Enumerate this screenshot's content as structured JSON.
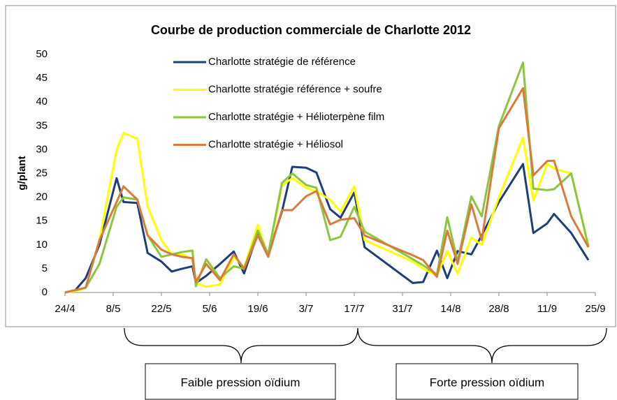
{
  "chart_data": {
    "type": "line",
    "title": "Courbe de production commerciale de Charlotte 2012",
    "y_label": "g/plant",
    "x": [
      "24/4",
      "27/4",
      "30/4",
      "4/5",
      "9/5",
      "11/5",
      "15/5",
      "18/5",
      "22/5",
      "25/5",
      "28/5",
      "31/5",
      "1/6",
      "4/6",
      "8/6",
      "12/6",
      "15/6",
      "19/6",
      "22/6",
      "26/6",
      "29/6",
      "3/7",
      "6/7",
      "10/7",
      "13/7",
      "17/7",
      "20/7",
      "3/8",
      "6/8",
      "10/8",
      "13/8",
      "16/8",
      "20/8",
      "23/8",
      "28/8",
      "4/9",
      "7/9",
      "11/9",
      "13/9",
      "18/9",
      "23/9"
    ],
    "series": [
      {
        "name": "Charlotte stratégie de référence",
        "color": "#1f3d7a",
        "values": [
          0,
          0.5,
          3,
          10,
          24,
          19,
          18.8,
          8.3,
          6.5,
          4.4,
          5,
          5.5,
          2,
          3.5,
          6,
          8.6,
          4,
          12.5,
          8,
          17,
          26.4,
          26.2,
          25.2,
          17.5,
          15.7,
          21,
          9.5,
          2,
          2.2,
          8.8,
          3,
          8.7,
          8,
          12,
          19,
          27,
          12.5,
          14.5,
          16.5,
          12.5,
          6.8
        ]
      },
      {
        "name": "Charlotte stratégie référence + soufre",
        "color": "#ffff00",
        "values": [
          0,
          0.3,
          1,
          11,
          30,
          33.5,
          32.3,
          18,
          11,
          8,
          8,
          7,
          2,
          1.2,
          1.7,
          7.5,
          5.3,
          14.2,
          7.5,
          22.5,
          24,
          22,
          21.2,
          19.5,
          17,
          22.3,
          11,
          6.5,
          5,
          3.5,
          8.7,
          4,
          11.5,
          10,
          20,
          32.5,
          19.3,
          27,
          26,
          25,
          9.5
        ]
      },
      {
        "name": "Charlotte stratégie + Hélioterpène film",
        "color": "#8cc63f",
        "values": [
          0,
          0.5,
          1,
          6,
          18,
          20,
          19.5,
          12,
          7.5,
          8,
          8.5,
          8.8,
          1.3,
          7,
          3,
          5.5,
          5,
          13,
          8,
          23,
          25,
          22.6,
          22,
          11,
          11.7,
          18,
          12.8,
          7,
          5.7,
          3.8,
          15.8,
          6.5,
          20.2,
          16,
          35,
          48.3,
          21.8,
          21.5,
          21.7,
          25,
          9.7
        ]
      },
      {
        "name": "Charlotte stratégie + Héliosol",
        "color": "#d97b3a",
        "values": [
          0,
          0.5,
          1,
          11,
          19,
          22.3,
          19.5,
          12,
          9,
          8,
          7.5,
          7.2,
          2.2,
          6,
          2.6,
          8,
          5,
          12,
          7.5,
          17.3,
          17.3,
          20.2,
          21.3,
          14.3,
          15.3,
          15.6,
          12,
          7.8,
          6.8,
          3.3,
          13,
          6,
          18.5,
          11,
          34.5,
          42.9,
          24.6,
          27.6,
          27.7,
          16,
          9.5
        ]
      }
    ],
    "xlim": [
      "24/4",
      "25/9"
    ],
    "xticks": [
      "24/4",
      "8/5",
      "22/5",
      "5/6",
      "19/6",
      "3/7",
      "17/7",
      "31/7",
      "14/8",
      "28/8",
      "11/9",
      "25/9"
    ],
    "ylim": [
      0,
      50
    ],
    "yticks": [
      0,
      5,
      10,
      15,
      20,
      25,
      30,
      35,
      40,
      45,
      50
    ],
    "annotations": [
      "Faible pression oïdium",
      "Forte pression oïdium"
    ]
  }
}
